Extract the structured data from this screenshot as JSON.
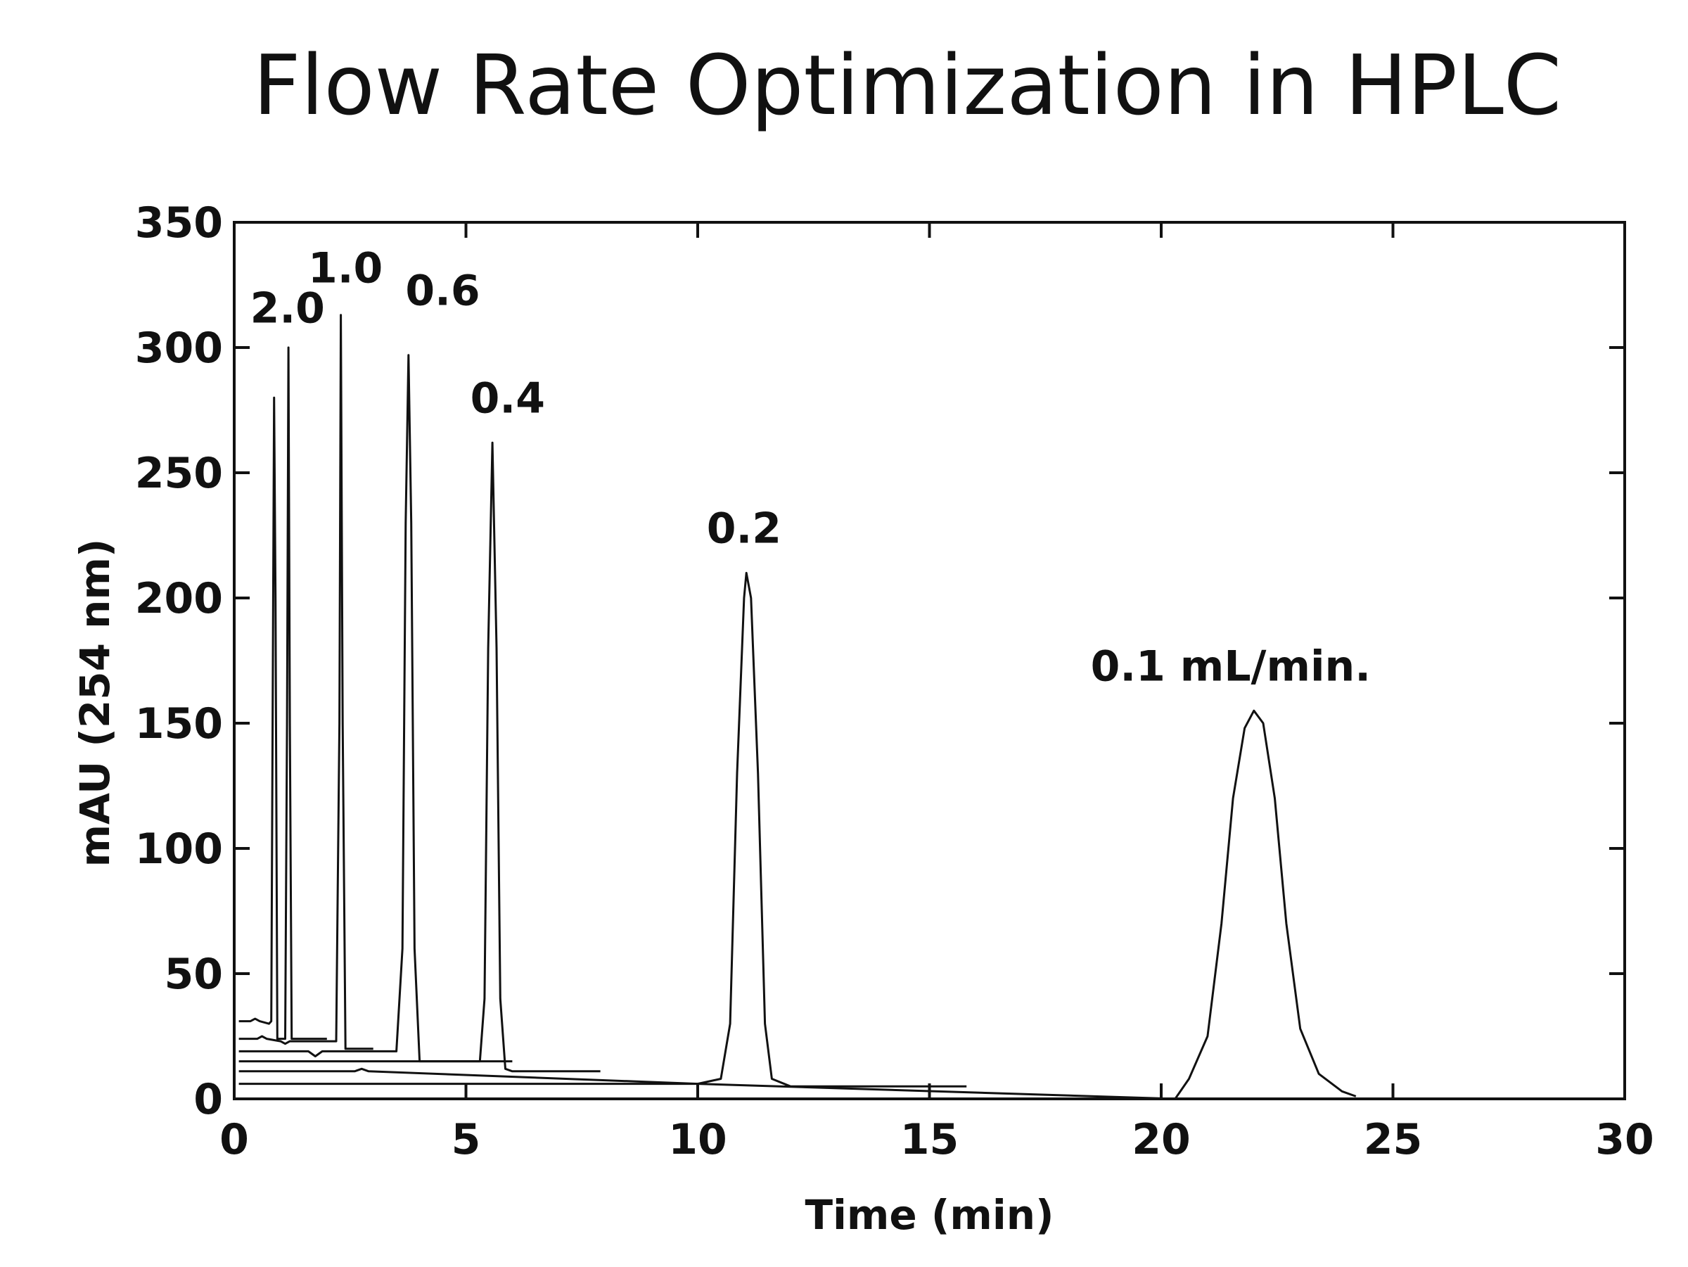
{
  "chart_data": {
    "type": "line",
    "title": "Flow Rate Optimization in HPLC",
    "xlabel": "Time (min)",
    "ylabel": "mAU (254 nm)",
    "xlim": [
      0,
      30
    ],
    "ylim": [
      0,
      350
    ],
    "xticks": [
      0,
      5,
      10,
      15,
      20,
      25,
      30
    ],
    "yticks": [
      0,
      50,
      100,
      150,
      200,
      250,
      300,
      350
    ],
    "grid": false,
    "series": [
      {
        "name": "2.0",
        "points": [
          [
            0.1,
            31
          ],
          [
            0.35,
            31
          ],
          [
            0.45,
            32
          ],
          [
            0.55,
            31
          ],
          [
            0.75,
            30
          ],
          [
            0.8,
            31
          ],
          [
            0.84,
            200
          ],
          [
            0.86,
            280
          ],
          [
            0.89,
            200
          ],
          [
            0.93,
            24
          ],
          [
            1.1,
            24
          ],
          [
            1.14,
            150
          ],
          [
            1.17,
            300
          ],
          [
            1.2,
            150
          ],
          [
            1.24,
            24
          ],
          [
            2.0,
            24
          ]
        ]
      },
      {
        "name": "1.0",
        "points": [
          [
            0.1,
            24
          ],
          [
            0.5,
            24
          ],
          [
            0.6,
            25
          ],
          [
            0.7,
            24
          ],
          [
            1.0,
            23
          ],
          [
            1.1,
            22
          ],
          [
            1.2,
            23
          ],
          [
            2.2,
            23
          ],
          [
            2.27,
            150
          ],
          [
            2.3,
            313
          ],
          [
            2.34,
            150
          ],
          [
            2.4,
            20
          ],
          [
            3.0,
            20
          ]
        ]
      },
      {
        "name": "0.6",
        "points": [
          [
            0.1,
            19
          ],
          [
            1.6,
            19
          ],
          [
            1.75,
            17
          ],
          [
            1.9,
            19
          ],
          [
            3.5,
            19
          ],
          [
            3.63,
            60
          ],
          [
            3.7,
            230
          ],
          [
            3.76,
            297
          ],
          [
            3.82,
            230
          ],
          [
            3.89,
            60
          ],
          [
            4.0,
            15
          ],
          [
            6.0,
            15
          ]
        ]
      },
      {
        "name": "0.4",
        "points": [
          [
            0.1,
            15
          ],
          [
            5.3,
            15
          ],
          [
            5.4,
            40
          ],
          [
            5.48,
            180
          ],
          [
            5.57,
            262
          ],
          [
            5.66,
            180
          ],
          [
            5.74,
            40
          ],
          [
            5.85,
            12
          ],
          [
            6.0,
            11
          ],
          [
            7.9,
            11
          ]
        ]
      },
      {
        "name": "0.2",
        "points": [
          [
            0.1,
            11
          ],
          [
            2.6,
            11
          ],
          [
            2.75,
            12
          ],
          [
            2.9,
            11
          ],
          [
            10.0,
            6
          ],
          [
            10.5,
            8
          ],
          [
            10.7,
            30
          ],
          [
            10.85,
            130
          ],
          [
            11.0,
            200
          ],
          [
            11.05,
            210
          ],
          [
            11.15,
            200
          ],
          [
            11.3,
            130
          ],
          [
            11.45,
            30
          ],
          [
            11.6,
            8
          ],
          [
            12.0,
            5
          ],
          [
            15.8,
            5
          ]
        ]
      },
      {
        "name": "0.1 mL/min.",
        "points": [
          [
            0.1,
            6
          ],
          [
            10.0,
            6
          ],
          [
            20.3,
            0
          ],
          [
            20.6,
            8
          ],
          [
            21.0,
            25
          ],
          [
            21.3,
            70
          ],
          [
            21.55,
            120
          ],
          [
            21.8,
            148
          ],
          [
            22.0,
            155
          ],
          [
            22.2,
            150
          ],
          [
            22.45,
            120
          ],
          [
            22.7,
            70
          ],
          [
            23.0,
            28
          ],
          [
            23.4,
            10
          ],
          [
            23.9,
            3
          ],
          [
            24.2,
            1
          ]
        ]
      }
    ],
    "annotations": [
      {
        "text": "2.0",
        "x": 1.15,
        "y": 310
      },
      {
        "text": "1.0",
        "x": 2.4,
        "y": 326
      },
      {
        "text": "0.6",
        "x": 4.5,
        "y": 317
      },
      {
        "text": "0.4",
        "x": 5.9,
        "y": 274
      },
      {
        "text": "0.2",
        "x": 11.0,
        "y": 222
      },
      {
        "text": "0.1 mL/min.",
        "x": 21.5,
        "y": 167
      }
    ]
  }
}
